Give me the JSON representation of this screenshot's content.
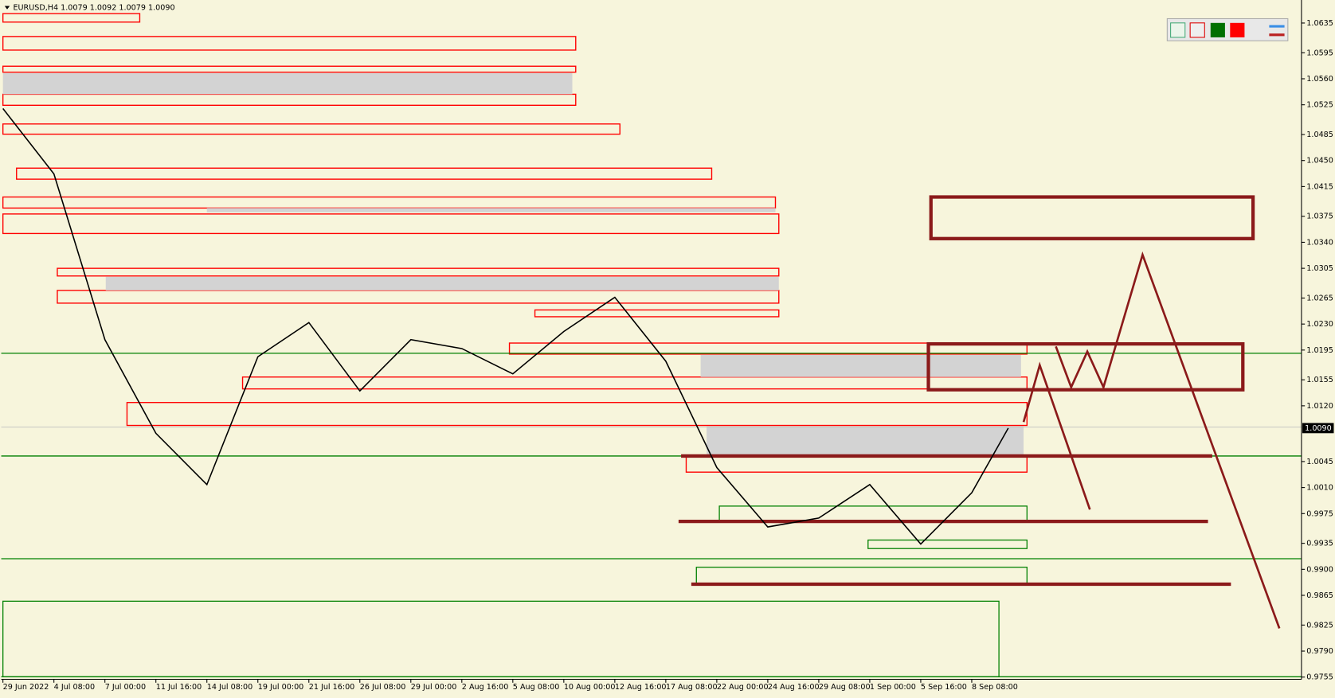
{
  "chart_data": {
    "type": "line",
    "title": "EURUSD,H4  1.0079 1.0092 1.0079 1.0090",
    "categories": [
      "29 Jun 2022",
      "4 Jul 08:00",
      "7 Jul 00:00",
      "11 Jul 16:00",
      "14 Jul 08:00",
      "19 Jul 00:00",
      "21 Jul 16:00",
      "26 Jul 08:00",
      "29 Jul 00:00",
      "2 Aug 16:00",
      "5 Aug 08:00",
      "10 Aug 00:00",
      "12 Aug 16:00",
      "17 Aug 08:00",
      "22 Aug 00:00",
      "24 Aug 16:00",
      "29 Aug 08:00",
      "1 Sep 00:00",
      "5 Sep 16:00",
      "8 Sep 08:00",
      null
    ],
    "series": [
      {
        "name": "EURUSD",
        "color": "#000000",
        "values": [
          1.052,
          1.0432,
          1.0209,
          1.0083,
          1.0014,
          1.0186,
          1.0232,
          1.014,
          1.0209,
          1.0197,
          1.0163,
          1.022,
          1.0266,
          1.018,
          1.0037,
          0.9957,
          0.9969,
          1.0014,
          0.9934,
          1.0003,
          1.009
        ]
      }
    ],
    "ylim": [
      0.9752,
      1.0666
    ],
    "yticks": [
      1.0635,
      1.0595,
      {
        "value": 1.056,
        "label": "1.0560"
      },
      1.0525,
      1.0485,
      {
        "value": 1.045,
        "label": "1.0450"
      },
      1.0415,
      1.0375,
      {
        "value": 1.034,
        "label": "1.0340"
      },
      1.0305,
      1.0265,
      {
        "value": 1.023,
        "label": "1.0230"
      },
      1.0195,
      1.0155,
      {
        "value": 1.012,
        "label": "1.0120"
      },
      1.0045,
      {
        "value": 1.001,
        "label": "1.0010"
      },
      0.9975,
      0.9935,
      {
        "value": 0.99,
        "label": "0.9900"
      },
      0.9865,
      0.9825,
      {
        "value": 0.979,
        "label": "0.9790"
      },
      0.9755
    ],
    "current_price": {
      "value": 1.009,
      "label": "1.0090"
    },
    "grid": false
  }
}
